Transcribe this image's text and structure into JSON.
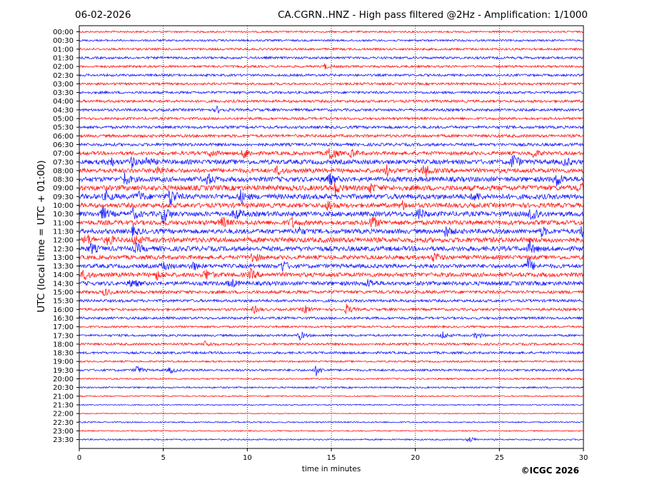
{
  "header": {
    "date": "06-02-2026",
    "title": "CA.CGRN..HNZ - High pass filtered @2Hz - Amplification: 1/1000"
  },
  "copyright": "©ICGC 2026",
  "chart_data": {
    "type": "line",
    "title": "CA.CGRN..HNZ - High pass filtered @2Hz - Amplification: 1/1000",
    "xlabel": "time in minutes",
    "ylabel": "UTC (local time = UTC + 01:00)",
    "xlim": [
      0,
      30
    ],
    "xticks": [
      "0",
      "5",
      "10",
      "15",
      "20",
      "25",
      "30"
    ],
    "x_values": [
      0,
      5,
      10,
      15,
      20,
      25,
      30
    ],
    "grid": true,
    "colors": {
      "red": "#ff1a1a",
      "blue": "#1a1aff"
    },
    "row_labels": [
      "00:00",
      "00:30",
      "01:00",
      "01:30",
      "02:00",
      "02:30",
      "03:00",
      "03:30",
      "04:00",
      "04:30",
      "05:00",
      "05:30",
      "06:00",
      "06:30",
      "07:00",
      "07:30",
      "08:00",
      "08:30",
      "09:00",
      "09:30",
      "10:00",
      "10:30",
      "11:00",
      "11:30",
      "12:00",
      "12:30",
      "13:00",
      "13:30",
      "14:00",
      "14:30",
      "15:00",
      "15:30",
      "16:00",
      "16:30",
      "17:00",
      "17:30",
      "18:00",
      "18:30",
      "19:00",
      "19:30",
      "20:00",
      "20:30",
      "21:00",
      "21:30",
      "22:00",
      "22:30",
      "23:00",
      "23:30"
    ],
    "row_colors": [
      "red",
      "blue",
      "red",
      "blue",
      "red",
      "blue",
      "red",
      "blue",
      "red",
      "blue",
      "red",
      "blue",
      "red",
      "blue",
      "red",
      "blue",
      "red",
      "blue",
      "red",
      "blue",
      "red",
      "blue",
      "red",
      "blue",
      "red",
      "blue",
      "red",
      "blue",
      "red",
      "blue",
      "red",
      "blue",
      "red",
      "blue",
      "red",
      "blue",
      "red",
      "blue",
      "red",
      "blue",
      "red",
      "blue",
      "red",
      "blue",
      "red",
      "blue",
      "red",
      "blue"
    ],
    "row_noise_level": [
      1.2,
      1.3,
      1.5,
      1.6,
      1.5,
      1.6,
      1.6,
      1.7,
      1.8,
      1.8,
      1.7,
      1.9,
      2.0,
      2.1,
      2.5,
      3.2,
      3.0,
      3.4,
      3.6,
      3.6,
      3.2,
      3.4,
      3.2,
      3.2,
      3.5,
      3.3,
      2.8,
      2.8,
      3.0,
      2.8,
      2.2,
      1.9,
      1.8,
      1.7,
      1.4,
      1.5,
      1.6,
      1.6,
      1.2,
      1.5,
      1.1,
      1.1,
      0.9,
      0.8,
      0.6,
      0.9,
      0.8,
      1.0
    ],
    "events": [
      {
        "row": 4,
        "t": 14.6,
        "amp": 3.5
      },
      {
        "row": 9,
        "t": 8.2,
        "amp": 4.0
      },
      {
        "row": 14,
        "t": 7.8,
        "amp": 5.0
      },
      {
        "row": 14,
        "t": 9.8,
        "amp": 8.0
      },
      {
        "row": 14,
        "t": 14.9,
        "amp": 14.0
      },
      {
        "row": 14,
        "t": 16.2,
        "amp": 6.0
      },
      {
        "row": 14,
        "t": 27.0,
        "amp": 6.0
      },
      {
        "row": 15,
        "t": 1.8,
        "amp": 7.0
      },
      {
        "row": 15,
        "t": 3.1,
        "amp": 7.0
      },
      {
        "row": 15,
        "t": 4.0,
        "amp": 6.0
      },
      {
        "row": 15,
        "t": 25.8,
        "amp": 12.0
      },
      {
        "row": 15,
        "t": 28.9,
        "amp": 6.0
      },
      {
        "row": 16,
        "t": 4.6,
        "amp": 7.0
      },
      {
        "row": 16,
        "t": 11.8,
        "amp": 6.0
      },
      {
        "row": 16,
        "t": 18.3,
        "amp": 7.0
      },
      {
        "row": 16,
        "t": 20.5,
        "amp": 10.0
      },
      {
        "row": 17,
        "t": 2.7,
        "amp": 8.0
      },
      {
        "row": 17,
        "t": 7.6,
        "amp": 8.0
      },
      {
        "row": 17,
        "t": 14.8,
        "amp": 9.0
      },
      {
        "row": 17,
        "t": 28.4,
        "amp": 10.0
      },
      {
        "row": 18,
        "t": 15.2,
        "amp": 7.0
      },
      {
        "row": 18,
        "t": 17.3,
        "amp": 6.0
      },
      {
        "row": 18,
        "t": 29.8,
        "amp": 6.0
      },
      {
        "row": 19,
        "t": 1.6,
        "amp": 6.0
      },
      {
        "row": 19,
        "t": 3.5,
        "amp": 7.0
      },
      {
        "row": 19,
        "t": 5.4,
        "amp": 14.0
      },
      {
        "row": 19,
        "t": 9.6,
        "amp": 8.0
      },
      {
        "row": 19,
        "t": 23.5,
        "amp": 6.0
      },
      {
        "row": 20,
        "t": 14.8,
        "amp": 7.0
      },
      {
        "row": 20,
        "t": 19.2,
        "amp": 6.0
      },
      {
        "row": 21,
        "t": 1.4,
        "amp": 9.0
      },
      {
        "row": 21,
        "t": 3.2,
        "amp": 7.0
      },
      {
        "row": 21,
        "t": 5.0,
        "amp": 14.0
      },
      {
        "row": 21,
        "t": 9.3,
        "amp": 9.0
      },
      {
        "row": 21,
        "t": 20.2,
        "amp": 8.0
      },
      {
        "row": 21,
        "t": 26.9,
        "amp": 16.0
      },
      {
        "row": 22,
        "t": 12.6,
        "amp": 7.0
      },
      {
        "row": 22,
        "t": 17.4,
        "amp": 10.0
      },
      {
        "row": 22,
        "t": 8.5,
        "amp": 7.0
      },
      {
        "row": 23,
        "t": 3.2,
        "amp": 6.0
      },
      {
        "row": 23,
        "t": 13.0,
        "amp": 6.0
      },
      {
        "row": 23,
        "t": 21.8,
        "amp": 7.0
      },
      {
        "row": 23,
        "t": 29.9,
        "amp": 7.0
      },
      {
        "row": 23,
        "t": 27.5,
        "amp": 6.0
      },
      {
        "row": 24,
        "t": 0.4,
        "amp": 8.0
      },
      {
        "row": 24,
        "t": 1.7,
        "amp": 7.0
      },
      {
        "row": 24,
        "t": 3.3,
        "amp": 7.0
      },
      {
        "row": 25,
        "t": 0.7,
        "amp": 7.0
      },
      {
        "row": 25,
        "t": 3.4,
        "amp": 6.0
      },
      {
        "row": 25,
        "t": 26.8,
        "amp": 9.0
      },
      {
        "row": 26,
        "t": 10.3,
        "amp": 8.0
      },
      {
        "row": 26,
        "t": 21.1,
        "amp": 7.0
      },
      {
        "row": 27,
        "t": 5.0,
        "amp": 7.0
      },
      {
        "row": 27,
        "t": 6.7,
        "amp": 7.0
      },
      {
        "row": 27,
        "t": 12.1,
        "amp": 8.0
      },
      {
        "row": 27,
        "t": 26.7,
        "amp": 12.0
      },
      {
        "row": 28,
        "t": 0.3,
        "amp": 7.0
      },
      {
        "row": 28,
        "t": 4.6,
        "amp": 6.0
      },
      {
        "row": 28,
        "t": 7.5,
        "amp": 8.0
      },
      {
        "row": 28,
        "t": 10.2,
        "amp": 7.0
      },
      {
        "row": 29,
        "t": 3.1,
        "amp": 7.0
      },
      {
        "row": 29,
        "t": 9.0,
        "amp": 7.0
      },
      {
        "row": 29,
        "t": 17.2,
        "amp": 6.0
      },
      {
        "row": 30,
        "t": 1.5,
        "amp": 5.0
      },
      {
        "row": 32,
        "t": 10.4,
        "amp": 5.0
      },
      {
        "row": 32,
        "t": 13.4,
        "amp": 6.0
      },
      {
        "row": 32,
        "t": 15.9,
        "amp": 7.0
      },
      {
        "row": 35,
        "t": 13.1,
        "amp": 6.0
      },
      {
        "row": 35,
        "t": 21.6,
        "amp": 5.0
      },
      {
        "row": 35,
        "t": 23.6,
        "amp": 5.0
      },
      {
        "row": 36,
        "t": 7.5,
        "amp": 4.5
      },
      {
        "row": 39,
        "t": 3.4,
        "amp": 6.5
      },
      {
        "row": 39,
        "t": 5.4,
        "amp": 5.0
      },
      {
        "row": 39,
        "t": 14.1,
        "amp": 7.0
      },
      {
        "row": 47,
        "t": 23.2,
        "amp": 4.5
      }
    ]
  }
}
